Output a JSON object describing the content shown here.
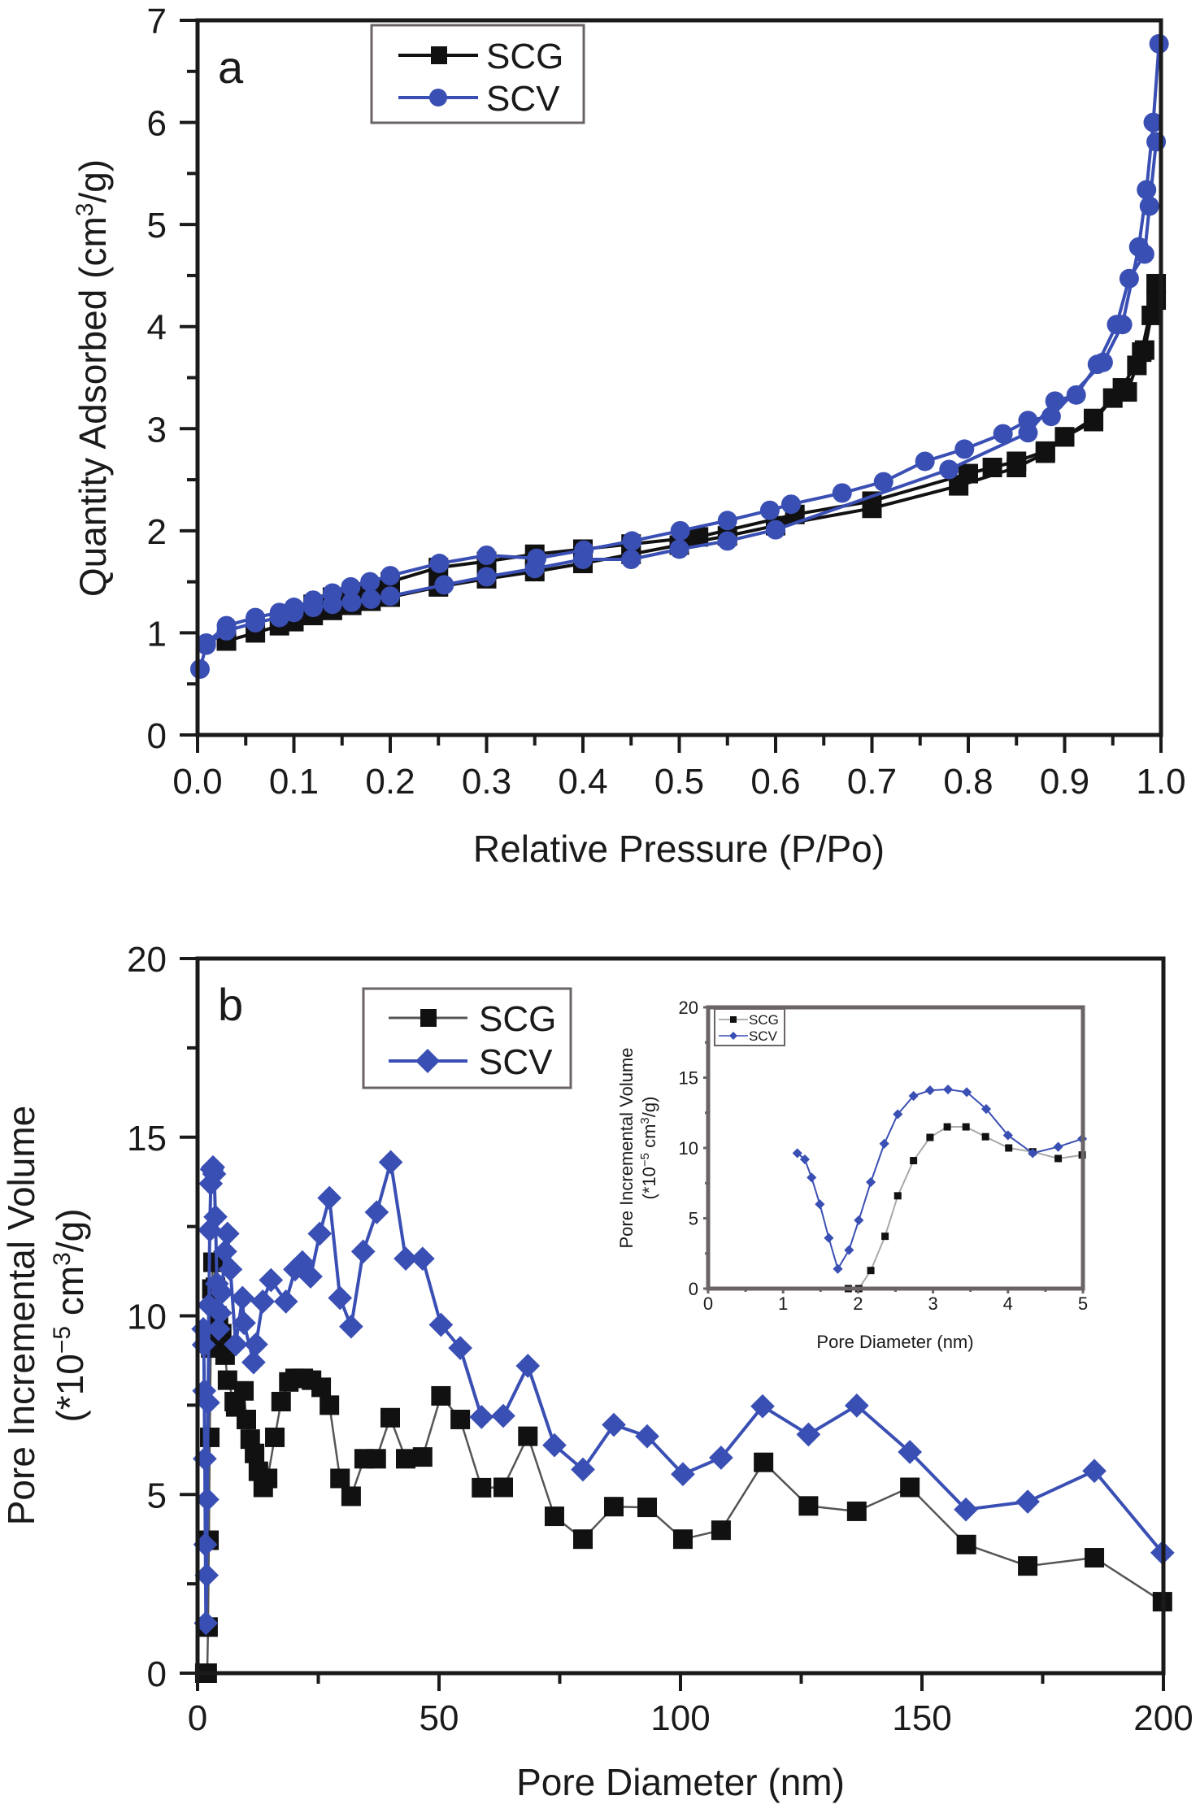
{
  "colors": {
    "SCG": "#111111",
    "SCG_line_b": "#555555",
    "SCV": "#3a4fb4"
  },
  "chart_data": [
    {
      "id": "a",
      "panel_label": "a",
      "type": "line",
      "title": "",
      "xlabel": "Relative Pressure (P/Po)",
      "ylabel": "Quantity Adsorbed (cm³/g)",
      "ylabel_parts": {
        "pre": "Quantity Adsorbed (cm",
        "sup": "3",
        "post": "/g)"
      },
      "xlim": [
        0,
        1.0
      ],
      "ylim": [
        0,
        7
      ],
      "xticks": [
        0.0,
        0.1,
        0.2,
        0.3,
        0.4,
        0.5,
        0.6,
        0.7,
        0.8,
        0.9,
        1.0
      ],
      "xtick_labels": [
        "0.0",
        "0.1",
        "0.2",
        "0.3",
        "0.4",
        "0.5",
        "0.6",
        "0.7",
        "0.8",
        "0.9",
        "1.0"
      ],
      "yticks": [
        0,
        1,
        2,
        3,
        4,
        5,
        6,
        7
      ],
      "ytick_labels": [
        "0",
        "1",
        "2",
        "3",
        "4",
        "5",
        "6",
        "7"
      ],
      "grid": false,
      "legend": {
        "placement": "top-center",
        "entries": [
          "SCG",
          "SCV"
        ]
      },
      "series": [
        {
          "name": "SCG",
          "marker": "square",
          "branches": [
            {
              "name": "adsorption",
              "x": [
                0.03,
                0.06,
                0.085,
                0.1,
                0.12,
                0.14,
                0.16,
                0.18,
                0.2,
                0.25,
                0.3,
                0.35,
                0.4,
                0.45,
                0.5,
                0.55,
                0.6,
                0.7,
                0.79,
                0.85,
                0.88,
                0.9,
                0.93,
                0.95,
                0.965,
                0.975,
                0.983,
                0.99,
                0.995
              ],
              "y": [
                0.92,
                1.0,
                1.07,
                1.11,
                1.17,
                1.22,
                1.27,
                1.31,
                1.35,
                1.45,
                1.53,
                1.6,
                1.68,
                1.77,
                1.86,
                1.95,
                2.05,
                2.22,
                2.44,
                2.62,
                2.76,
                2.92,
                3.07,
                3.3,
                3.36,
                3.62,
                3.77,
                4.11,
                4.26
              ]
            },
            {
              "name": "desorption",
              "x": [
                0.995,
                0.98,
                0.96,
                0.93,
                0.9,
                0.88,
                0.85,
                0.825,
                0.8,
                0.7,
                0.62,
                0.52,
                0.45,
                0.4,
                0.35,
                0.3,
                0.25,
                0.2,
                0.18,
                0.16,
                0.14,
                0.12,
                0.1
              ],
              "y": [
                4.42,
                3.75,
                3.4,
                3.1,
                2.92,
                2.78,
                2.68,
                2.62,
                2.56,
                2.29,
                2.16,
                1.94,
                1.87,
                1.82,
                1.77,
                1.7,
                1.64,
                1.5,
                1.45,
                1.4,
                1.35,
                1.28,
                1.18
              ]
            }
          ]
        },
        {
          "name": "SCV",
          "marker": "circle",
          "branches": [
            {
              "name": "adsorption",
              "x": [
                0.0025,
                0.009,
                0.03,
                0.06,
                0.085,
                0.1,
                0.12,
                0.14,
                0.16,
                0.18,
                0.2,
                0.256,
                0.3,
                0.35,
                0.4,
                0.45,
                0.5,
                0.55,
                0.6,
                0.78,
                0.862,
                0.89,
                0.912,
                0.934,
                0.954,
                0.967,
                0.983,
                0.988,
                0.995
              ],
              "y": [
                0.645,
                0.88,
                1.02,
                1.1,
                1.15,
                1.2,
                1.25,
                1.28,
                1.3,
                1.33,
                1.36,
                1.47,
                1.55,
                1.63,
                1.72,
                1.72,
                1.82,
                1.9,
                2.01,
                2.6,
                2.96,
                3.27,
                3.33,
                3.63,
                4.02,
                4.47,
                4.71,
                5.18,
                5.81
              ]
            },
            {
              "name": "desorption",
              "x": [
                0.998,
                0.992,
                0.985,
                0.977,
                0.96,
                0.94,
                0.886,
                0.862,
                0.836,
                0.796,
                0.755,
                0.712,
                0.669,
                0.616,
                0.594,
                0.55,
                0.501,
                0.451,
                0.401,
                0.352,
                0.3,
                0.251,
                0.2,
                0.179,
                0.159,
                0.14,
                0.12,
                0.1,
                0.085,
                0.06,
                0.03,
                0.009
              ],
              "y": [
                6.77,
                6.0,
                5.34,
                4.78,
                4.02,
                3.65,
                3.12,
                3.08,
                2.95,
                2.8,
                2.68,
                2.48,
                2.37,
                2.26,
                2.2,
                2.1,
                2.0,
                1.9,
                1.81,
                1.73,
                1.76,
                1.68,
                1.56,
                1.5,
                1.45,
                1.39,
                1.32,
                1.25,
                1.2,
                1.15,
                1.07,
                0.9
              ]
            }
          ]
        }
      ]
    },
    {
      "id": "b",
      "panel_label": "b",
      "type": "line",
      "title": "",
      "xlabel": "Pore Diameter (nm)",
      "ylabel": "Pore Incremental Volume (*10⁻⁵ cm³/g)",
      "ylabel_line1": "Pore Incremental Volume",
      "ylabel_line2_parts": {
        "pre": "(*10",
        "sup1": "−5",
        "mid": " cm",
        "sup2": "3",
        "post": "/g)"
      },
      "xlim": [
        0,
        200
      ],
      "ylim": [
        0,
        20
      ],
      "xticks": [
        0,
        50,
        100,
        150,
        200
      ],
      "xtick_labels": [
        "0",
        "50",
        "100",
        "150",
        "200"
      ],
      "yticks": [
        0,
        5,
        10,
        15,
        20
      ],
      "ytick_labels": [
        "0",
        "5",
        "10",
        "15",
        "20"
      ],
      "grid": false,
      "legend": {
        "placement": "top-left",
        "entries": [
          "SCG",
          "SCV"
        ]
      },
      "series": [
        {
          "name": "SCG",
          "marker": "square",
          "x": [
            1.5,
            1.87,
            2.0,
            2.17,
            2.36,
            2.53,
            2.74,
            2.96,
            3.19,
            3.44,
            3.7,
            4.0,
            4.33,
            4.67,
            5.0,
            5.7,
            6.2,
            7.6,
            7.9,
            9.6,
            10.1,
            10.9,
            11.8,
            12.6,
            13.6,
            14.5,
            16.0,
            17.3,
            18.9,
            20.2,
            21.9,
            23.6,
            25.6,
            27.3,
            29.5,
            31.8,
            34.5,
            37.0,
            39.9,
            43.1,
            46.6,
            50.4,
            54.4,
            58.8,
            63.3,
            68.4,
            73.9,
            79.8,
            86.2,
            93.1,
            100.5,
            108.4,
            117.2,
            126.5,
            136.5,
            147.5,
            159.2,
            171.9,
            185.7,
            199.8
          ],
          "y": [
            0,
            0,
            0,
            1.29,
            3.72,
            6.6,
            9.1,
            10.75,
            11.5,
            11.5,
            10.8,
            10.0,
            9.73,
            9.25,
            9.5,
            8.9,
            8.2,
            7.6,
            7.45,
            7.9,
            7.1,
            6.55,
            6.15,
            5.65,
            5.2,
            5.45,
            6.6,
            7.6,
            8.15,
            8.25,
            8.25,
            8.2,
            8.0,
            7.5,
            5.45,
            4.95,
            6.0,
            6.0,
            7.15,
            6.0,
            6.05,
            7.76,
            7.1,
            5.19,
            5.2,
            6.63,
            4.39,
            3.75,
            4.66,
            4.64,
            3.75,
            4.0,
            5.9,
            4.68,
            4.53,
            5.2,
            3.6,
            3.0,
            3.23,
            2.0
          ]
        },
        {
          "name": "SCV",
          "marker": "diamond",
          "x": [
            1.19,
            1.29,
            1.38,
            1.49,
            1.61,
            1.73,
            1.88,
            2.01,
            2.17,
            2.35,
            2.53,
            2.74,
            2.96,
            3.2,
            3.45,
            3.71,
            4.0,
            4.33,
            4.67,
            4.99,
            5.7,
            6.2,
            6.8,
            7.9,
            9.3,
            9.6,
            11.6,
            12.1,
            13.5,
            15.2,
            18.3,
            20.2,
            21.7,
            23.4,
            25.3,
            27.3,
            29.5,
            31.8,
            34.3,
            37.1,
            40.0,
            43.1,
            46.6,
            50.4,
            54.4,
            58.8,
            63.3,
            68.4,
            73.9,
            79.8,
            86.2,
            93.1,
            100.5,
            108.4,
            117.0,
            126.5,
            136.5,
            147.5,
            159.1,
            171.9,
            185.7,
            199.8
          ],
          "y": [
            9.63,
            9.19,
            7.9,
            6.0,
            3.6,
            1.4,
            2.74,
            4.86,
            7.57,
            10.3,
            12.4,
            13.7,
            14.1,
            14.16,
            13.97,
            12.77,
            10.9,
            9.63,
            10.08,
            10.65,
            11.8,
            12.3,
            11.3,
            9.2,
            10.5,
            9.8,
            8.7,
            9.2,
            10.4,
            11.0,
            10.4,
            11.3,
            11.5,
            11.1,
            12.3,
            13.3,
            10.5,
            9.7,
            11.8,
            12.9,
            14.3,
            11.6,
            11.6,
            9.75,
            9.1,
            7.17,
            7.2,
            8.6,
            6.38,
            5.7,
            6.95,
            6.63,
            5.57,
            6.03,
            7.47,
            6.68,
            7.49,
            6.19,
            4.58,
            4.8,
            5.66,
            3.37
          ]
        }
      ],
      "inset": {
        "type": "line",
        "xlabel": "Pore Diameter (nm)",
        "ylabel_line1": "Pore Incremental Volume",
        "ylabel_line2_parts": {
          "pre": "(*10",
          "sup1": "−5",
          "mid": " cm",
          "sup2": "3",
          "post": "/g)"
        },
        "xlim": [
          0,
          5
        ],
        "ylim": [
          0,
          20
        ],
        "xticks": [
          0,
          1,
          2,
          3,
          4,
          5
        ],
        "xtick_labels": [
          "0",
          "1",
          "2",
          "3",
          "4",
          "5"
        ],
        "yticks": [
          0,
          5,
          10,
          15,
          20
        ],
        "ytick_labels": [
          "0",
          "5",
          "10",
          "15",
          "20"
        ],
        "legend": {
          "placement": "top-left",
          "entries": [
            "SCG",
            "SCV"
          ]
        },
        "series": [
          {
            "name": "SCG",
            "marker": "square",
            "x": [
              1.87,
              2.01,
              2.17,
              2.36,
              2.53,
              2.74,
              2.96,
              3.19,
              3.44,
              3.7,
              4.01,
              4.33,
              4.67,
              4.99
            ],
            "y": [
              0,
              0,
              1.29,
              3.72,
              6.6,
              9.1,
              10.75,
              11.5,
              11.5,
              10.8,
              10.0,
              9.73,
              9.25,
              9.5
            ]
          },
          {
            "name": "SCV",
            "marker": "diamond",
            "x": [
              1.19,
              1.29,
              1.38,
              1.49,
              1.61,
              1.73,
              1.88,
              2.01,
              2.17,
              2.35,
              2.53,
              2.74,
              2.96,
              3.2,
              3.45,
              3.71,
              4.0,
              4.33,
              4.67,
              4.99
            ],
            "y": [
              9.63,
              9.19,
              7.9,
              6.0,
              3.6,
              1.4,
              2.74,
              4.86,
              7.57,
              10.3,
              12.4,
              13.7,
              14.1,
              14.16,
              13.97,
              12.77,
              10.9,
              9.63,
              10.08,
              10.65
            ]
          }
        ]
      }
    }
  ]
}
